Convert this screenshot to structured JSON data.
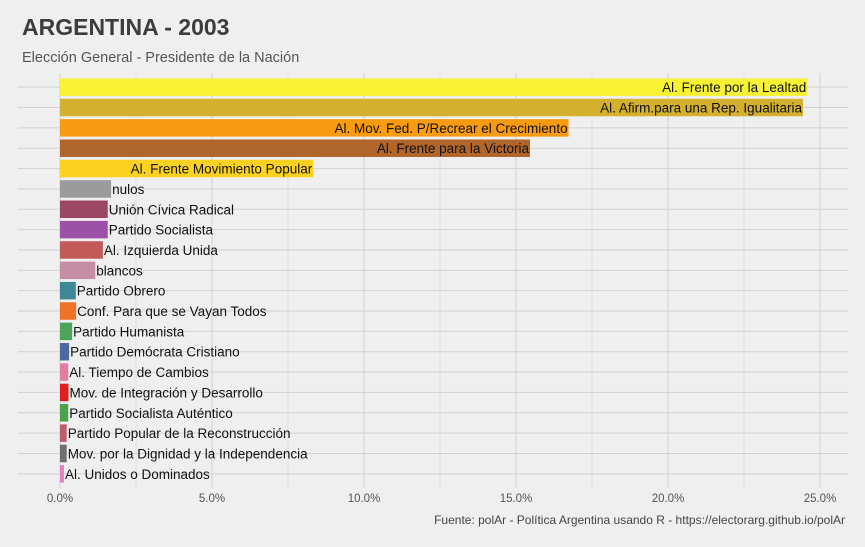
{
  "header": {
    "title": "ARGENTINA - 2003",
    "subtitle": "Elección General - Presidente de la Nación",
    "caption": "Fuente: polAr - Política Argentina usando R - https://electorarg.github.io/polAr"
  },
  "chart_data": {
    "type": "bar",
    "orientation": "horizontal",
    "title": "ARGENTINA - 2003",
    "subtitle": "Elección General - Presidente de la Nación",
    "xlabel": "",
    "ylabel": "",
    "xlim": [
      0,
      0.26
    ],
    "x_ticks": [
      0,
      0.05,
      0.1,
      0.15,
      0.2,
      0.25
    ],
    "x_tick_labels": [
      "0.0%",
      "5.0%",
      "10.0%",
      "15.0%",
      "20.0%",
      "25.0%"
    ],
    "grid": true,
    "categories": [
      "Al. Frente por la Lealtad",
      "Al. Afirm.para una Rep. Igualitaria",
      "Al. Mov. Fed. P/Recrear el Crecimiento",
      "Al. Frente para la Victoria",
      "Al. Frente Movimiento Popular",
      "nulos",
      "Unión Cívica Radical",
      "Partido Socialista",
      "Al. Izquierda Unida",
      "blancos",
      "Partido Obrero",
      "Conf. Para que se Vayan Todos",
      "Partido Humanista",
      "Partido Demócrata Cristiano",
      "Al. Tiempo de Cambios",
      "Mov. de Integración y Desarrollo",
      "Partido Socialista Auténtico",
      "Partido Popular de la Reconstrucción",
      "Mov. por la Dignidad y la Independencia",
      "Al. Unidos o Dominados"
    ],
    "values": [
      0.2458,
      0.2444,
      0.1673,
      0.1546,
      0.0833,
      0.0168,
      0.0157,
      0.0157,
      0.0141,
      0.0116,
      0.0052,
      0.0053,
      0.004,
      0.003,
      0.0027,
      0.0028,
      0.0027,
      0.0022,
      0.0022,
      0.0013
    ],
    "colors": [
      "#f8f234",
      "#d3b02d",
      "#f99b10",
      "#b0652a",
      "#fbd221",
      "#9b9b9b",
      "#9c4764",
      "#9b51a6",
      "#c35a5a",
      "#c68ea5",
      "#3e8794",
      "#ee7326",
      "#4da35c",
      "#4e69a0",
      "#e27ca3",
      "#e0201f",
      "#4ca24b",
      "#bc5c6c",
      "#6f6f6f",
      "#e283bd"
    ]
  }
}
